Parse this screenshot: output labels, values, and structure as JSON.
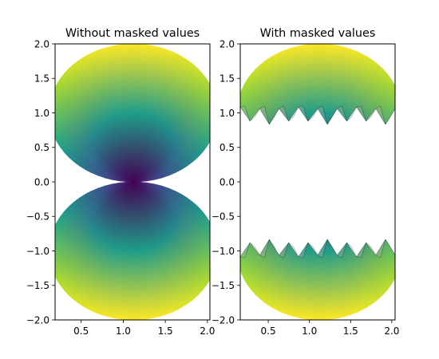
{
  "chart_data": [
    {
      "type": "heatmap",
      "title": "Without masked values",
      "xlabel": "",
      "ylabel": "",
      "xlim": [
        0.19,
        2.03
      ],
      "ylim": [
        -2.0,
        2.0
      ],
      "xticks": [
        0.5,
        1.0,
        1.5,
        2.0
      ],
      "xtick_labels": [
        "0.5",
        "1.0",
        "1.5",
        "2.0"
      ],
      "yticks": [
        -2.0,
        -1.5,
        -1.0,
        -0.5,
        0.0,
        0.5,
        1.0,
        1.5,
        2.0
      ],
      "ytick_labels": [
        "−2.0",
        "−1.5",
        "−1.0",
        "−0.5",
        "0.0",
        "0.5",
        "1.0",
        "1.5",
        "2.0"
      ],
      "colormap": "viridis",
      "grid": false,
      "lobes": [
        {
          "cx": 1.12,
          "cy": 1.0,
          "r": 1.0,
          "apex": [
            1.12,
            0.0
          ]
        },
        {
          "cx": 1.12,
          "cy": -1.0,
          "r": 1.0,
          "apex": [
            1.12,
            0.0
          ]
        }
      ],
      "masked_region": null
    },
    {
      "type": "heatmap",
      "title": "With masked values",
      "xlabel": "",
      "ylabel": "",
      "xlim": [
        0.16,
        2.04
      ],
      "ylim": [
        -2.0,
        2.0
      ],
      "xticks": [
        0.5,
        1.0,
        1.5,
        2.0
      ],
      "xtick_labels": [
        "0.5",
        "1.0",
        "1.5",
        "2.0"
      ],
      "yticks": [
        -2.0,
        -1.5,
        -1.0,
        -0.5,
        0.0,
        0.5,
        1.0,
        1.5,
        2.0
      ],
      "ytick_labels": [
        "−2.0",
        "−1.5",
        "−1.0",
        "−0.5",
        "0.0",
        "0.5",
        "1.0",
        "1.5",
        "2.0"
      ],
      "colormap": "viridis",
      "grid": false,
      "lobes": [
        {
          "cx": 1.12,
          "cy": 1.0,
          "r": 1.0,
          "apex": [
            1.12,
            0.0
          ]
        },
        {
          "cx": 1.12,
          "cy": -1.0,
          "r": 1.0,
          "apex": [
            1.12,
            0.0
          ]
        }
      ],
      "masked_region": {
        "y_min": -1.0,
        "y_max": 1.0
      }
    }
  ],
  "colors": {
    "viridis": [
      "#440154",
      "#482878",
      "#3e4989",
      "#31688e",
      "#26828e",
      "#1f9e89",
      "#35b779",
      "#6ece58",
      "#b5de2b",
      "#fde725"
    ],
    "mesh_edge": "#000000"
  }
}
